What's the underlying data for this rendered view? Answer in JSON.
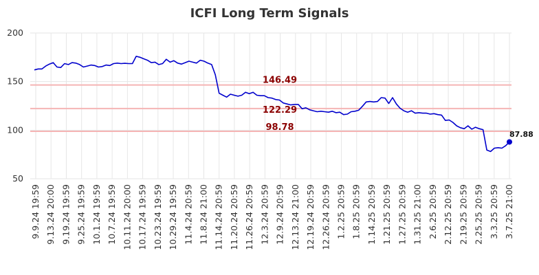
{
  "chart_data": {
    "type": "line",
    "title": "ICFI Long Term Signals",
    "xlabel": "",
    "ylabel": "",
    "ylim": [
      50,
      200
    ],
    "yticks": [
      50,
      100,
      150,
      200
    ],
    "grid": true,
    "xtick_labels": [
      "9.9.24 19:59",
      "9.13.24 20:00",
      "9.19.24 19:59",
      "9.25.24 19:59",
      "10.1.24 19:59",
      "10.7.24 19:59",
      "10.11.24 20:00",
      "10.17.24 19:59",
      "10.23.24 19:59",
      "10.29.24 19:59",
      "11.4.24 20:59",
      "11.8.24 21:00",
      "11.14.24 20:59",
      "11.20.24 20:59",
      "11.26.24 20:59",
      "12.3.24 20:59",
      "12.9.24 20:59",
      "12.13.24 21:00",
      "12.19.24 20:59",
      "12.26.24 20:59",
      "1.2.25 20:59",
      "1.8.25 20:59",
      "1.14.25 20:59",
      "1.21.25 20:59",
      "1.27.25 20:59",
      "1.31.25 21:00",
      "2.6.25 20:59",
      "2.12.25 20:59",
      "2.19.25 20:59",
      "2.25.25 20:59",
      "3.3.25 20:59",
      "3.7.25 21:00"
    ],
    "signal_lines": [
      {
        "value": 146.49,
        "label": "146.49"
      },
      {
        "value": 122.29,
        "label": "122.29"
      },
      {
        "value": 98.78,
        "label": "98.78"
      }
    ],
    "series": [
      {
        "values": [
          162,
          163,
          163,
          166,
          168,
          169.5,
          165,
          164.5,
          168.5,
          167.5,
          169.5,
          169,
          167.5,
          165,
          166,
          167,
          166.5,
          165,
          165.5,
          167,
          166.5,
          168.5,
          169,
          168.5,
          168.8,
          168.5,
          168.5,
          176,
          175,
          173.5,
          172,
          169.5,
          170,
          167.5,
          168.5,
          173,
          170,
          171.5,
          169,
          168,
          169.5,
          171,
          170,
          169,
          172,
          171,
          169,
          167.5,
          157,
          138,
          136,
          134,
          137,
          136,
          135,
          136,
          139,
          137.5,
          139,
          136,
          135.5,
          135.5,
          133.5,
          133,
          131.5,
          131,
          128,
          127,
          126,
          126.5,
          126.5,
          122,
          123,
          121,
          120,
          119,
          119.5,
          119,
          118.5,
          119.5,
          118,
          118.5,
          116,
          116.5,
          119,
          119.5,
          120.5,
          124.5,
          129,
          129.5,
          129,
          129.5,
          133.5,
          133,
          127.5,
          133.5,
          127,
          122.5,
          120,
          118.5,
          120,
          117.5,
          118,
          117.5,
          117.5,
          116.5,
          117,
          116,
          115.5,
          110,
          110.5,
          108,
          104.5,
          102.5,
          101.5,
          104.5,
          101,
          103,
          101.5,
          100.5,
          79.5,
          78,
          81.5,
          82,
          81.5,
          84,
          87.88
        ]
      }
    ],
    "last_value": {
      "value": 87.88,
      "label": "87.88"
    },
    "colors": {
      "line": "#0000cc",
      "signal": "#f5b4b4",
      "signal_text": "#8b0000",
      "grid": "#e6e6e6"
    }
  }
}
